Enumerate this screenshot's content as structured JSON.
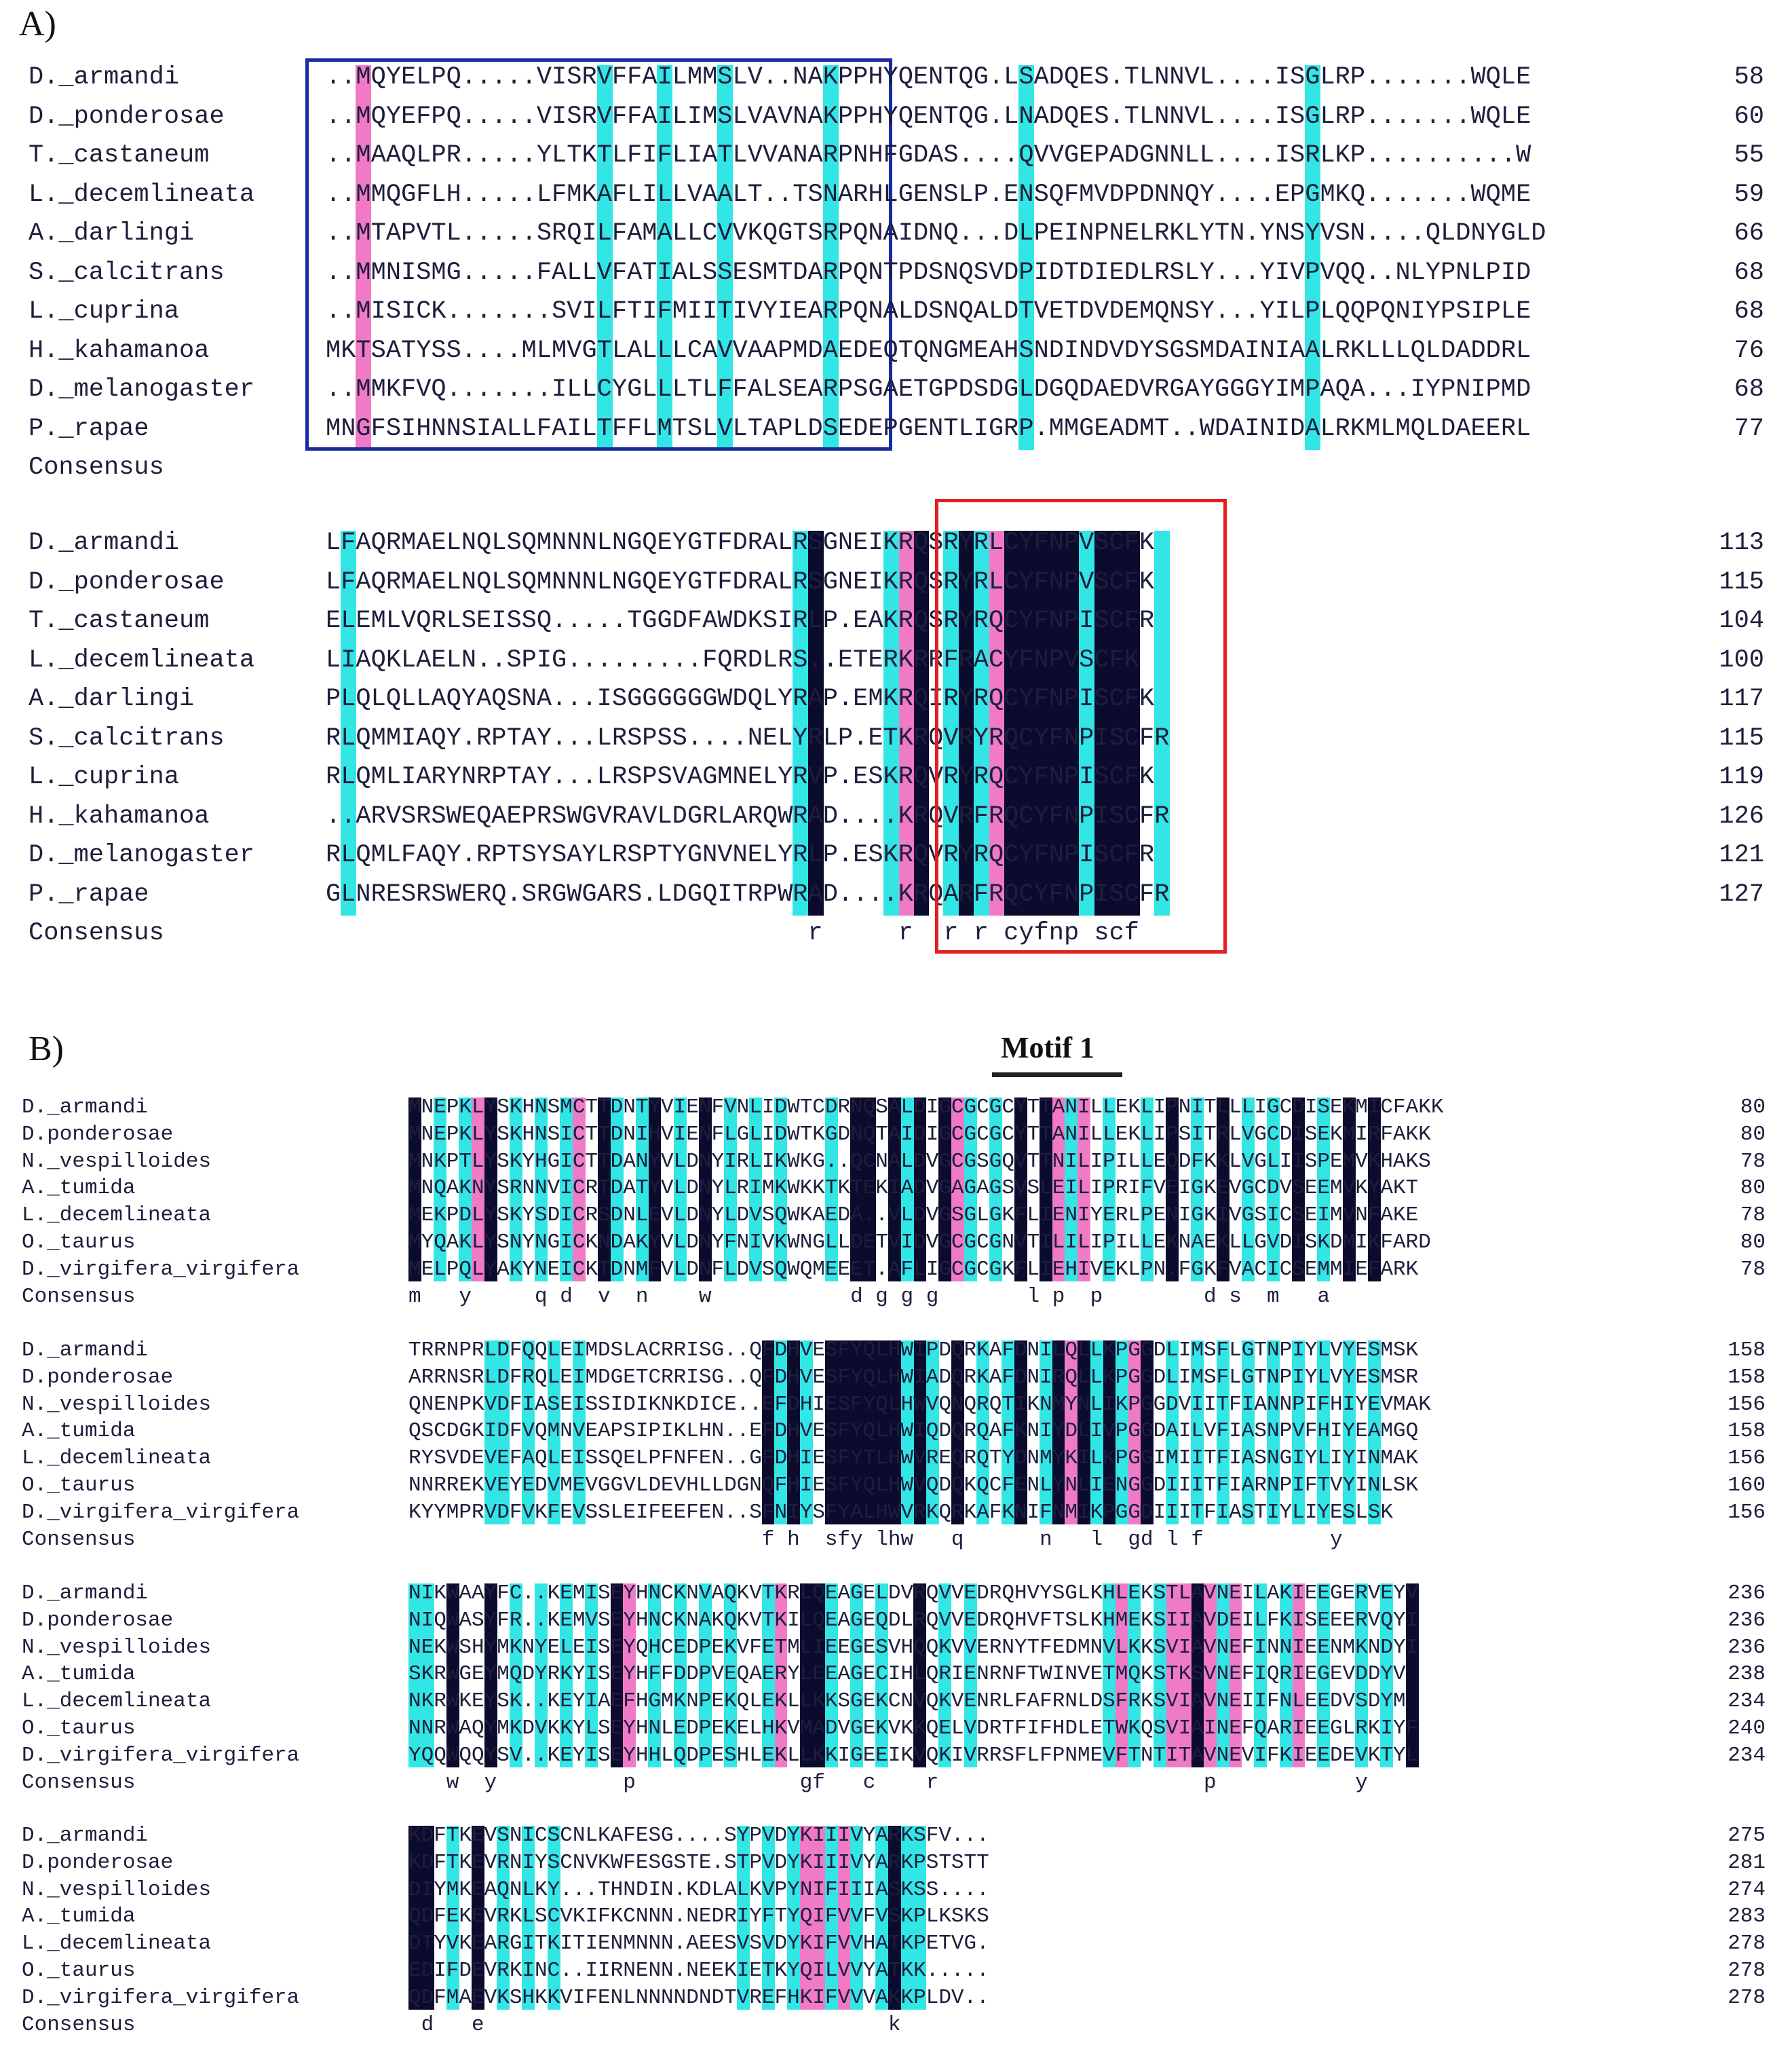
{
  "panelA": {
    "label": "A)",
    "blocks": [
      {
        "rows": [
          {
            "name": "D._armandi",
            "seq": "..MQYELPQ.....VISRVFFAILMMSLV..NAKPPHYQENTQG.LSADQES.TLNNVL....ISGLRP.......WQLE",
            "num": "58"
          },
          {
            "name": "D._ponderosae",
            "seq": "..MQYEFPQ.....VISRVFFAILIMSLVAVNAKPPHYQENTQG.LNADQES.TLNNVL....ISGLRP.......WQLE",
            "num": "60"
          },
          {
            "name": "T._castaneum",
            "seq": "..MAAQLPR.....YLTKTLFIFLIATLVVANARPNHFGDAS....QVVGEPADGNNLL....ISRLKP..........W",
            "num": "55"
          },
          {
            "name": "L._decemlineata",
            "seq": "..MMQGFLH.....LFMKAFLILLVAALT..TSNARHLGENSLP.ENSQFMVDPDNNQY....EPGMKQ.......WQME",
            "num": "59"
          },
          {
            "name": "A._darlingi",
            "seq": "..MTAPVTL.....SRQILFAMALLCVVKQGTSRPQNAIDNQ...DLPEINPNELRKLYTN.YNSYVSN....QLDNYGLD",
            "num": "66"
          },
          {
            "name": "S._calcitrans",
            "seq": "..MMNISMG.....FALLVFATIALSSESMTDARPQNTPDSNQSVDPIDTDIEDLRSLY...YIVPVQQ..NLYPNLPID",
            "num": "68"
          },
          {
            "name": "L._cuprina",
            "seq": "..MISICK.......SVILFTIFMIITIVYIEARPQNALDSNQALDTVETDVDEMQNSY...YILPLQQPQNIYPSIPLE",
            "num": "68"
          },
          {
            "name": "H._kahamanoa",
            "seq": "MKTSATYSS....MLMVGTLALLLCAVVAAPMDAEDEQTQNGMEAHSNDINDVDYSGSMDAINIAALRKLLLQLDADDRL",
            "num": "76"
          },
          {
            "name": "D._melanogaster",
            "seq": "..MMKFVQ.......ILLCYGLLLTLFFALSEARPSGAETGPDSDGLDGQDAEDVRGAYGGGYIMPAQA...IYPNIPMD",
            "num": "68"
          },
          {
            "name": "P._rapae",
            "seq": "MNGFSIHNNSIALLFAILTFFLMTSLVLTAPLDSEDEPGENTLIGRP.MMGEADMT..WDAINIDALRKMLMQLDAEERL",
            "num": "77"
          }
        ],
        "consensus_label": "Consensus",
        "consensus": ""
      },
      {
        "rows": [
          {
            "name": "D._armandi",
            "seq": "LFAQRMAELNQLSQMNNNLNGQEYGTFDRALRSGNEIKRQSRYRLCYFNPVSCFK",
            "num": "113"
          },
          {
            "name": "D._ponderosae",
            "seq": "LFAQRMAELNQLSQMNNNLNGQEYGTFDRALRSGNEIKRQSRYRLCYFNPVSCFK",
            "num": "115"
          },
          {
            "name": "T._castaneum",
            "seq": "ELEMLVQRLSEISSQ.....TGGDFAWDKSIRLP.EAKRQSRYRQCYFNPISCFR",
            "num": "104"
          },
          {
            "name": "L._decemlineata",
            "seq": "LIAQKLAELN..SPIG.........FQRDLRS..ETERKRRFRACYFNPVSCFK",
            "num": "100"
          },
          {
            "name": "A._darlingi",
            "seq": "PLQLQLLAQYAQSNA...ISGGGGGGWDQLYRAP.EMKRQIRYRQCYFNPISCFK",
            "num": "117"
          },
          {
            "name": "S._calcitrans",
            "seq": "RLQMMIAQY.RPTAY...LRSPSS....NELYRLP.ETKRQVRYRQCYFNPISCFR",
            "num": "115"
          },
          {
            "name": "L._cuprina",
            "seq": "RLQMLIARYNRPTAY...LRSPSVAGMNELYRVP.ESKRQVRYRQCYFNPISCFK",
            "num": "119"
          },
          {
            "name": "H._kahamanoa",
            "seq": "..ARVSRSWEQAEPRSWGVRAVLDGRLARQWRAD....KRQVRFRQCYFNPISCFR",
            "num": "126"
          },
          {
            "name": "D._melanogaster",
            "seq": "RLQMLFAQY.RPTSYSAYLRSPTYGNVNELYRLP.ESKRQVRYRQCYFNPISCFR",
            "num": "121"
          },
          {
            "name": "P._rapae",
            "seq": "GLNRESRSWERQ.SRGWGARS.LDGQITRPWRAD....KRQARFRQCYFNPISCFR",
            "num": "127"
          }
        ],
        "consensus_label": "Consensus",
        "consensus": "                                r     r  r r cyfnp scf "
      }
    ]
  },
  "panelB": {
    "label": "B)",
    "motif_label": "Motif 1",
    "blocks": [
      {
        "rows": [
          {
            "name": "D._armandi",
            "seq": "MNEPKLYSKHNSMCTTDNTYVIENFVNLIDWTCDRNQSALDIGCGCGCYTTANILLEKLIPNITLLLIGCDISEKMICFAKK",
            "num": "80"
          },
          {
            "name": "D.ponderosae",
            "seq": "MNEPKLYSKHNSICTTDNIHVIENFLGLIDWTKGDNQTAIDIGCGCGCYTTANILLEKLIPSITRLVGCDISEKMIRFAKK",
            "num": "80"
          },
          {
            "name": "N._vespilloides",
            "seq": "MNKPTLYSKYHGICTTDANYVLDNYIRLIKWKG..QCNALDVGCGSGQVTTNILIPILLEQDFKKLVGLIISPEMVKHAKS",
            "num": "78"
          },
          {
            "name": "A._tumida",
            "seq": "MNQAKNYSRNNVICRTDATYVLDNYLRIMKWKKTKTEKIADVGAGAGSVSLEILIPRIFVEIGKEVGCDVSEEMVKYAKT",
            "num": "80"
          },
          {
            "name": "L._decemlineata",
            "seq": "MEKPDLYSKYSDICRSDNLEVLDNYLDVSQWKAEDA..VLDVGSGLGKFLIENIYERLPENIGKIVGSICSEIMVNFAKE",
            "num": "78"
          },
          {
            "name": "O._taurus",
            "seq": "MYQAKLYSNYNGICKNDAKYVLDNYFNIVKWNGLLDETVIDVGCGCGNVTILILIPILLEKNAEKLLGVDISKDMIKFARD",
            "num": "80"
          },
          {
            "name": "D._virgifera_virgifera",
            "seq": "MELPQLYAKYNEICKTDNMFVLDNFLDVSQWQMEEET.AFLIGCGCGKFLIEHIVEKLPN.FGKFVACICSEMMIEFARK",
            "num": "78"
          }
        ],
        "consensus_label": "Consensus",
        "consensus": "m   y     q d  v  n    w           d g g g       l p  p        d s  m   a  "
      },
      {
        "rows": [
          {
            "name": "D._armandi",
            "seq": "TRRNPRLDFQQLEIMDSLACRRISG..QFDHVESFYQLHWIPDQRKAFDNILQLLKPGGDLIMSFLGTNPIYLVYESMSK",
            "num": "158"
          },
          {
            "name": "D.ponderosae",
            "seq": "ARRNSRLDFRQLEIMDGETCRRISG..QFDHVESFYQLHWIADQRKAFDNIRQLLKPGGDLIMSFLGTNPIYLVYESMSR",
            "num": "158"
          },
          {
            "name": "N._vespilloides",
            "seq": "QNENPKVDFIASEISSIDIKNKDICE..EFDHIESFYQLHWVQNQRQTIKNMYNLIKPGGDVIITFIANNPIFHIYEVMAK",
            "num": "156"
          },
          {
            "name": "A._tumida",
            "seq": "QSCDGKIDFVQMNVEAPSIPIKLHN..EFDHVESFYQLHWIQDQRQAFKNIYDLIVPGGDAILVFIASNPVFHIYEAMGQ",
            "num": "158"
          },
          {
            "name": "L._decemlineata",
            "seq": "RYSVDEVEFAQLEISSQELPFNFEN..GFDHIESFYTLHWVREQRQTYDNMYKILKPGGIMIITFIASNGIYLIYINMAK",
            "num": "156"
          },
          {
            "name": "O._taurus",
            "seq": "NNRREKVEYEDVMEVGGVLDEVHLLDGNQFHIESFYQLHWVQDQKQCFENLYNLIENGGDIIITFIARNPIFTVYINLSK",
            "num": "160"
          },
          {
            "name": "D._virgifera_virgifera",
            "seq": "KYYMPRVDFVKFEVSSLEIFEEFEN..SFNIYSFYALHWVRKQRKAFKNIFNMIKPGGDIIITFIASTIYLIYESLSK",
            "num": "156"
          }
        ],
        "consensus_label": "Consensus",
        "consensus": "                            f h  sfy lhw   q      n   l  gd l f          y    "
      },
      {
        "rows": [
          {
            "name": "D._armandi",
            "seq": "NIKWAAYFC..KEMISEYHNCKNVAQKVTKRLQEAGELDVRQVVEDRQHVYSGLKHLEKSTLAVNEILAKIEEGERVEYV",
            "num": "236"
          },
          {
            "name": "D.ponderosae",
            "seq": "NIQWASYFR..KEMVSEYHNCKNAKQKVTKILQEAGEQDLRQVVEDRQHVFTSLKHMEKSIIAVDEILFKISEEERVQYI",
            "num": "236"
          },
          {
            "name": "N._vespilloides",
            "seq": "NEKWSHYMKNYELEISEYQHCEDPEKVFETMLIEEGESVHQQKVVERNYTFEDMNVLKKSVIAVNEFINNIEENMKNDYI",
            "num": "236"
          },
          {
            "name": "A._tumida",
            "seq": "SKRWGEYMQDYRKYISEYHFFDDPVEQAERYLEEAGECIHLQRIENRNFTWINVETMQKSTKSVNEFIQRIEGEVDDYV",
            "num": "238"
          },
          {
            "name": "L._decemlineata",
            "seq": "NKRWKEYSK..KEYIAEFHGMKNPEKQLEKLLKKSGEKCNVQKVENRLFAFRNLDSFRKSVIAVNEIIFNLEEDVSDYM",
            "num": "234"
          },
          {
            "name": "O._taurus",
            "seq": "NNRWAQYMKDVKKYLSEYHNLEDPEKELHKVMADVGEKVKKQELVDRTFIFHDLETWKQSVIAINEFQARIEEGLRKIYF",
            "num": "240"
          },
          {
            "name": "D._virgifera_virgifera",
            "seq": "YQQWQQYSV..KEYISEYHHLQDPESHLEKLLKKIGEEIKVQKIVRRSFLFPNMEVFTNTITAVNEVIFKIEEDEVKTYL",
            "num": "234"
          }
        ],
        "consensus_label": "Consensus",
        "consensus": "   w  y          p             gf   c    r                     p           y  "
      },
      {
        "rows": [
          {
            "name": "D._armandi",
            "seq": "KDFTKEVSNICSCNLKAFESG....SYPVDYKIIIVYARKSFV...",
            "num": "275"
          },
          {
            "name": "D.ponderosae",
            "seq": "KDFTKEVRNIYSCNVKWFESGSTE.STPVDYKIIIVYARKPSTSTT",
            "num": "281"
          },
          {
            "name": "N._vespilloides",
            "seq": "DIYMKEAQNLKY...THNDIN.KDLALKVPYNIFIIIASKSS....",
            "num": "274"
          },
          {
            "name": "A._tumida",
            "seq": "QDFEKEVRKLSCVKIFKCNNN.NEDRIYFTYQIFVVFVSKPLKSKS",
            "num": "283"
          },
          {
            "name": "L._decemlineata",
            "seq": "DTYVKEARGITKITIENMNNN.AEESVSVDYKIFVVHATKPETVG.",
            "num": "278"
          },
          {
            "name": "O._taurus",
            "seq": "EDIFDEVRKINC..IIRNENN.NEEKIETKYQILVVYATKK.....",
            "num": "278"
          },
          {
            "name": "D._virgifera_virgifera",
            "seq": "QDFMAEVKSHKKVIFENLNNNNDNDTVREFHKIFVVVAKKPLDV..",
            "num": "278"
          }
        ],
        "consensus_label": "Consensus",
        "consensus": " d   e                                k     "
      }
    ]
  }
}
